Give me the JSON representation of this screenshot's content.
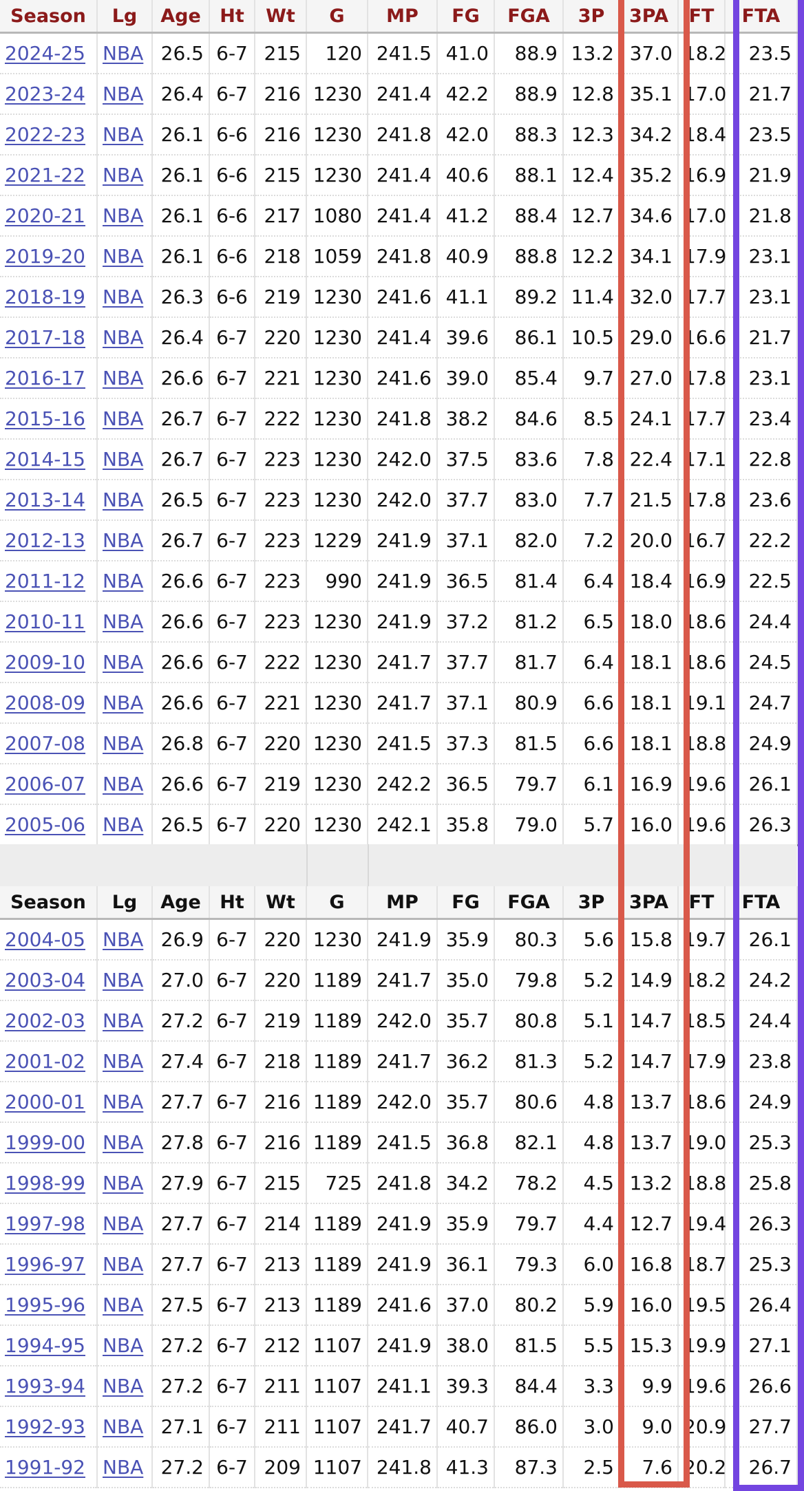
{
  "columns": [
    "Season",
    "Lg",
    "Age",
    "Ht",
    "Wt",
    "G",
    "MP",
    "FG",
    "FGA",
    "3P",
    "3PA",
    "FT",
    "FTA"
  ],
  "highlights": {
    "three_pa_color": "#d9594a",
    "fta_color": "#7345e0"
  },
  "top_rows": [
    [
      "2024-25",
      "NBA",
      "26.5",
      "6-7",
      "215",
      "120",
      "241.5",
      "41.0",
      "88.9",
      "13.2",
      "37.0",
      "18.2",
      "23.5"
    ],
    [
      "2023-24",
      "NBA",
      "26.4",
      "6-7",
      "216",
      "1230",
      "241.4",
      "42.2",
      "88.9",
      "12.8",
      "35.1",
      "17.0",
      "21.7"
    ],
    [
      "2022-23",
      "NBA",
      "26.1",
      "6-6",
      "216",
      "1230",
      "241.8",
      "42.0",
      "88.3",
      "12.3",
      "34.2",
      "18.4",
      "23.5"
    ],
    [
      "2021-22",
      "NBA",
      "26.1",
      "6-6",
      "215",
      "1230",
      "241.4",
      "40.6",
      "88.1",
      "12.4",
      "35.2",
      "16.9",
      "21.9"
    ],
    [
      "2020-21",
      "NBA",
      "26.1",
      "6-6",
      "217",
      "1080",
      "241.4",
      "41.2",
      "88.4",
      "12.7",
      "34.6",
      "17.0",
      "21.8"
    ],
    [
      "2019-20",
      "NBA",
      "26.1",
      "6-6",
      "218",
      "1059",
      "241.8",
      "40.9",
      "88.8",
      "12.2",
      "34.1",
      "17.9",
      "23.1"
    ],
    [
      "2018-19",
      "NBA",
      "26.3",
      "6-6",
      "219",
      "1230",
      "241.6",
      "41.1",
      "89.2",
      "11.4",
      "32.0",
      "17.7",
      "23.1"
    ],
    [
      "2017-18",
      "NBA",
      "26.4",
      "6-7",
      "220",
      "1230",
      "241.4",
      "39.6",
      "86.1",
      "10.5",
      "29.0",
      "16.6",
      "21.7"
    ],
    [
      "2016-17",
      "NBA",
      "26.6",
      "6-7",
      "221",
      "1230",
      "241.6",
      "39.0",
      "85.4",
      "9.7",
      "27.0",
      "17.8",
      "23.1"
    ],
    [
      "2015-16",
      "NBA",
      "26.7",
      "6-7",
      "222",
      "1230",
      "241.8",
      "38.2",
      "84.6",
      "8.5",
      "24.1",
      "17.7",
      "23.4"
    ],
    [
      "2014-15",
      "NBA",
      "26.7",
      "6-7",
      "223",
      "1230",
      "242.0",
      "37.5",
      "83.6",
      "7.8",
      "22.4",
      "17.1",
      "22.8"
    ],
    [
      "2013-14",
      "NBA",
      "26.5",
      "6-7",
      "223",
      "1230",
      "242.0",
      "37.7",
      "83.0",
      "7.7",
      "21.5",
      "17.8",
      "23.6"
    ],
    [
      "2012-13",
      "NBA",
      "26.7",
      "6-7",
      "223",
      "1229",
      "241.9",
      "37.1",
      "82.0",
      "7.2",
      "20.0",
      "16.7",
      "22.2"
    ],
    [
      "2011-12",
      "NBA",
      "26.6",
      "6-7",
      "223",
      "990",
      "241.9",
      "36.5",
      "81.4",
      "6.4",
      "18.4",
      "16.9",
      "22.5"
    ],
    [
      "2010-11",
      "NBA",
      "26.6",
      "6-7",
      "223",
      "1230",
      "241.9",
      "37.2",
      "81.2",
      "6.5",
      "18.0",
      "18.6",
      "24.4"
    ],
    [
      "2009-10",
      "NBA",
      "26.6",
      "6-7",
      "222",
      "1230",
      "241.7",
      "37.7",
      "81.7",
      "6.4",
      "18.1",
      "18.6",
      "24.5"
    ],
    [
      "2008-09",
      "NBA",
      "26.6",
      "6-7",
      "221",
      "1230",
      "241.7",
      "37.1",
      "80.9",
      "6.6",
      "18.1",
      "19.1",
      "24.7"
    ],
    [
      "2007-08",
      "NBA",
      "26.8",
      "6-7",
      "220",
      "1230",
      "241.5",
      "37.3",
      "81.5",
      "6.6",
      "18.1",
      "18.8",
      "24.9"
    ],
    [
      "2006-07",
      "NBA",
      "26.6",
      "6-7",
      "219",
      "1230",
      "242.2",
      "36.5",
      "79.7",
      "6.1",
      "16.9",
      "19.6",
      "26.1"
    ],
    [
      "2005-06",
      "NBA",
      "26.5",
      "6-7",
      "220",
      "1230",
      "242.1",
      "35.8",
      "79.0",
      "5.7",
      "16.0",
      "19.6",
      "26.3"
    ]
  ],
  "bottom_rows": [
    [
      "2004-05",
      "NBA",
      "26.9",
      "6-7",
      "220",
      "1230",
      "241.9",
      "35.9",
      "80.3",
      "5.6",
      "15.8",
      "19.7",
      "26.1"
    ],
    [
      "2003-04",
      "NBA",
      "27.0",
      "6-7",
      "220",
      "1189",
      "241.7",
      "35.0",
      "79.8",
      "5.2",
      "14.9",
      "18.2",
      "24.2"
    ],
    [
      "2002-03",
      "NBA",
      "27.2",
      "6-7",
      "219",
      "1189",
      "242.0",
      "35.7",
      "80.8",
      "5.1",
      "14.7",
      "18.5",
      "24.4"
    ],
    [
      "2001-02",
      "NBA",
      "27.4",
      "6-7",
      "218",
      "1189",
      "241.7",
      "36.2",
      "81.3",
      "5.2",
      "14.7",
      "17.9",
      "23.8"
    ],
    [
      "2000-01",
      "NBA",
      "27.7",
      "6-7",
      "216",
      "1189",
      "242.0",
      "35.7",
      "80.6",
      "4.8",
      "13.7",
      "18.6",
      "24.9"
    ],
    [
      "1999-00",
      "NBA",
      "27.8",
      "6-7",
      "216",
      "1189",
      "241.5",
      "36.8",
      "82.1",
      "4.8",
      "13.7",
      "19.0",
      "25.3"
    ],
    [
      "1998-99",
      "NBA",
      "27.9",
      "6-7",
      "215",
      "725",
      "241.8",
      "34.2",
      "78.2",
      "4.5",
      "13.2",
      "18.8",
      "25.8"
    ],
    [
      "1997-98",
      "NBA",
      "27.7",
      "6-7",
      "214",
      "1189",
      "241.9",
      "35.9",
      "79.7",
      "4.4",
      "12.7",
      "19.4",
      "26.3"
    ],
    [
      "1996-97",
      "NBA",
      "27.7",
      "6-7",
      "213",
      "1189",
      "241.9",
      "36.1",
      "79.3",
      "6.0",
      "16.8",
      "18.7",
      "25.3"
    ],
    [
      "1995-96",
      "NBA",
      "27.5",
      "6-7",
      "213",
      "1189",
      "241.6",
      "37.0",
      "80.2",
      "5.9",
      "16.0",
      "19.5",
      "26.4"
    ],
    [
      "1994-95",
      "NBA",
      "27.2",
      "6-7",
      "212",
      "1107",
      "241.9",
      "38.0",
      "81.5",
      "5.5",
      "15.3",
      "19.9",
      "27.1"
    ],
    [
      "1993-94",
      "NBA",
      "27.2",
      "6-7",
      "211",
      "1107",
      "241.1",
      "39.3",
      "84.4",
      "3.3",
      "9.9",
      "19.6",
      "26.6"
    ],
    [
      "1992-93",
      "NBA",
      "27.1",
      "6-7",
      "211",
      "1107",
      "241.7",
      "40.7",
      "86.0",
      "3.0",
      "9.0",
      "20.9",
      "27.7"
    ],
    [
      "1991-92",
      "NBA",
      "27.2",
      "6-7",
      "209",
      "1107",
      "241.8",
      "41.3",
      "87.3",
      "2.5",
      "7.6",
      "20.2",
      "26.7"
    ]
  ]
}
